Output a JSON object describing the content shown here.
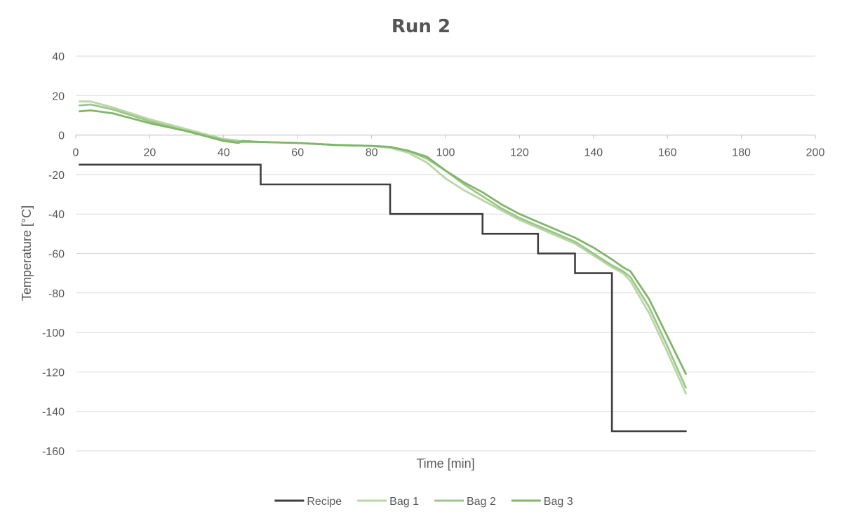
{
  "chart_data": {
    "type": "line",
    "title": "Run 2",
    "xlabel": "Time [min]",
    "ylabel": "Temperature [°C]",
    "xlim": [
      0,
      200
    ],
    "ylim": [
      -160,
      40
    ],
    "x_ticks": [
      0,
      20,
      40,
      60,
      80,
      100,
      120,
      140,
      160,
      180,
      200
    ],
    "y_ticks": [
      40,
      20,
      0,
      -20,
      -40,
      -60,
      -80,
      -100,
      -120,
      -140,
      -160
    ],
    "grid": "horizontal",
    "legend_position": "bottom",
    "series": [
      {
        "name": "Recipe",
        "color": "#3f3f3f",
        "step": true,
        "points": [
          [
            1,
            -15
          ],
          [
            50,
            -15
          ],
          [
            50,
            -25
          ],
          [
            85,
            -25
          ],
          [
            85,
            -40
          ],
          [
            110,
            -40
          ],
          [
            110,
            -50
          ],
          [
            125,
            -50
          ],
          [
            125,
            -60
          ],
          [
            135,
            -60
          ],
          [
            135,
            -70
          ],
          [
            145,
            -70
          ],
          [
            145,
            -150
          ],
          [
            165,
            -150
          ]
        ]
      },
      {
        "name": "Bag 1",
        "color": "#b9d7a6",
        "points": [
          [
            1,
            17
          ],
          [
            4,
            17
          ],
          [
            10,
            14
          ],
          [
            20,
            8
          ],
          [
            30,
            3
          ],
          [
            40,
            -2
          ],
          [
            45,
            -3
          ],
          [
            50,
            -3.5
          ],
          [
            60,
            -4
          ],
          [
            70,
            -5
          ],
          [
            80,
            -5.5
          ],
          [
            85,
            -6.5
          ],
          [
            90,
            -9
          ],
          [
            95,
            -14
          ],
          [
            100,
            -22
          ],
          [
            105,
            -28
          ],
          [
            110,
            -33
          ],
          [
            115,
            -38
          ],
          [
            120,
            -43
          ],
          [
            125,
            -47
          ],
          [
            130,
            -51
          ],
          [
            135,
            -55
          ],
          [
            140,
            -61
          ],
          [
            145,
            -67
          ],
          [
            148,
            -70
          ],
          [
            150,
            -74
          ],
          [
            155,
            -90
          ],
          [
            160,
            -110
          ],
          [
            165,
            -131
          ]
        ]
      },
      {
        "name": "Bag 2",
        "color": "#9dc78a",
        "points": [
          [
            1,
            15
          ],
          [
            4,
            15.5
          ],
          [
            10,
            13
          ],
          [
            20,
            7
          ],
          [
            30,
            2
          ],
          [
            40,
            -2.5
          ],
          [
            45,
            -3.5
          ],
          [
            50,
            -3.5
          ],
          [
            60,
            -4
          ],
          [
            70,
            -5
          ],
          [
            80,
            -5.5
          ],
          [
            85,
            -6
          ],
          [
            90,
            -8
          ],
          [
            95,
            -12
          ],
          [
            100,
            -18
          ],
          [
            105,
            -25
          ],
          [
            110,
            -31
          ],
          [
            115,
            -37
          ],
          [
            120,
            -42
          ],
          [
            125,
            -46
          ],
          [
            130,
            -50
          ],
          [
            135,
            -54
          ],
          [
            140,
            -60
          ],
          [
            145,
            -66
          ],
          [
            148,
            -69
          ],
          [
            150,
            -72
          ],
          [
            155,
            -87
          ],
          [
            160,
            -107
          ],
          [
            165,
            -128
          ]
        ]
      },
      {
        "name": "Bag 3",
        "color": "#7fb66a",
        "points": [
          [
            1,
            12
          ],
          [
            4,
            12.5
          ],
          [
            10,
            11
          ],
          [
            20,
            6
          ],
          [
            30,
            2
          ],
          [
            40,
            -3
          ],
          [
            44,
            -4
          ],
          [
            45,
            -3
          ],
          [
            50,
            -3.5
          ],
          [
            60,
            -4
          ],
          [
            70,
            -5
          ],
          [
            80,
            -5.5
          ],
          [
            85,
            -6
          ],
          [
            90,
            -8
          ],
          [
            95,
            -11
          ],
          [
            100,
            -18
          ],
          [
            105,
            -24
          ],
          [
            110,
            -29
          ],
          [
            115,
            -35
          ],
          [
            120,
            -40
          ],
          [
            125,
            -44
          ],
          [
            130,
            -48
          ],
          [
            135,
            -52
          ],
          [
            140,
            -57
          ],
          [
            145,
            -63
          ],
          [
            148,
            -67
          ],
          [
            150,
            -69
          ],
          [
            155,
            -83
          ],
          [
            160,
            -102
          ],
          [
            165,
            -121
          ]
        ]
      }
    ]
  }
}
